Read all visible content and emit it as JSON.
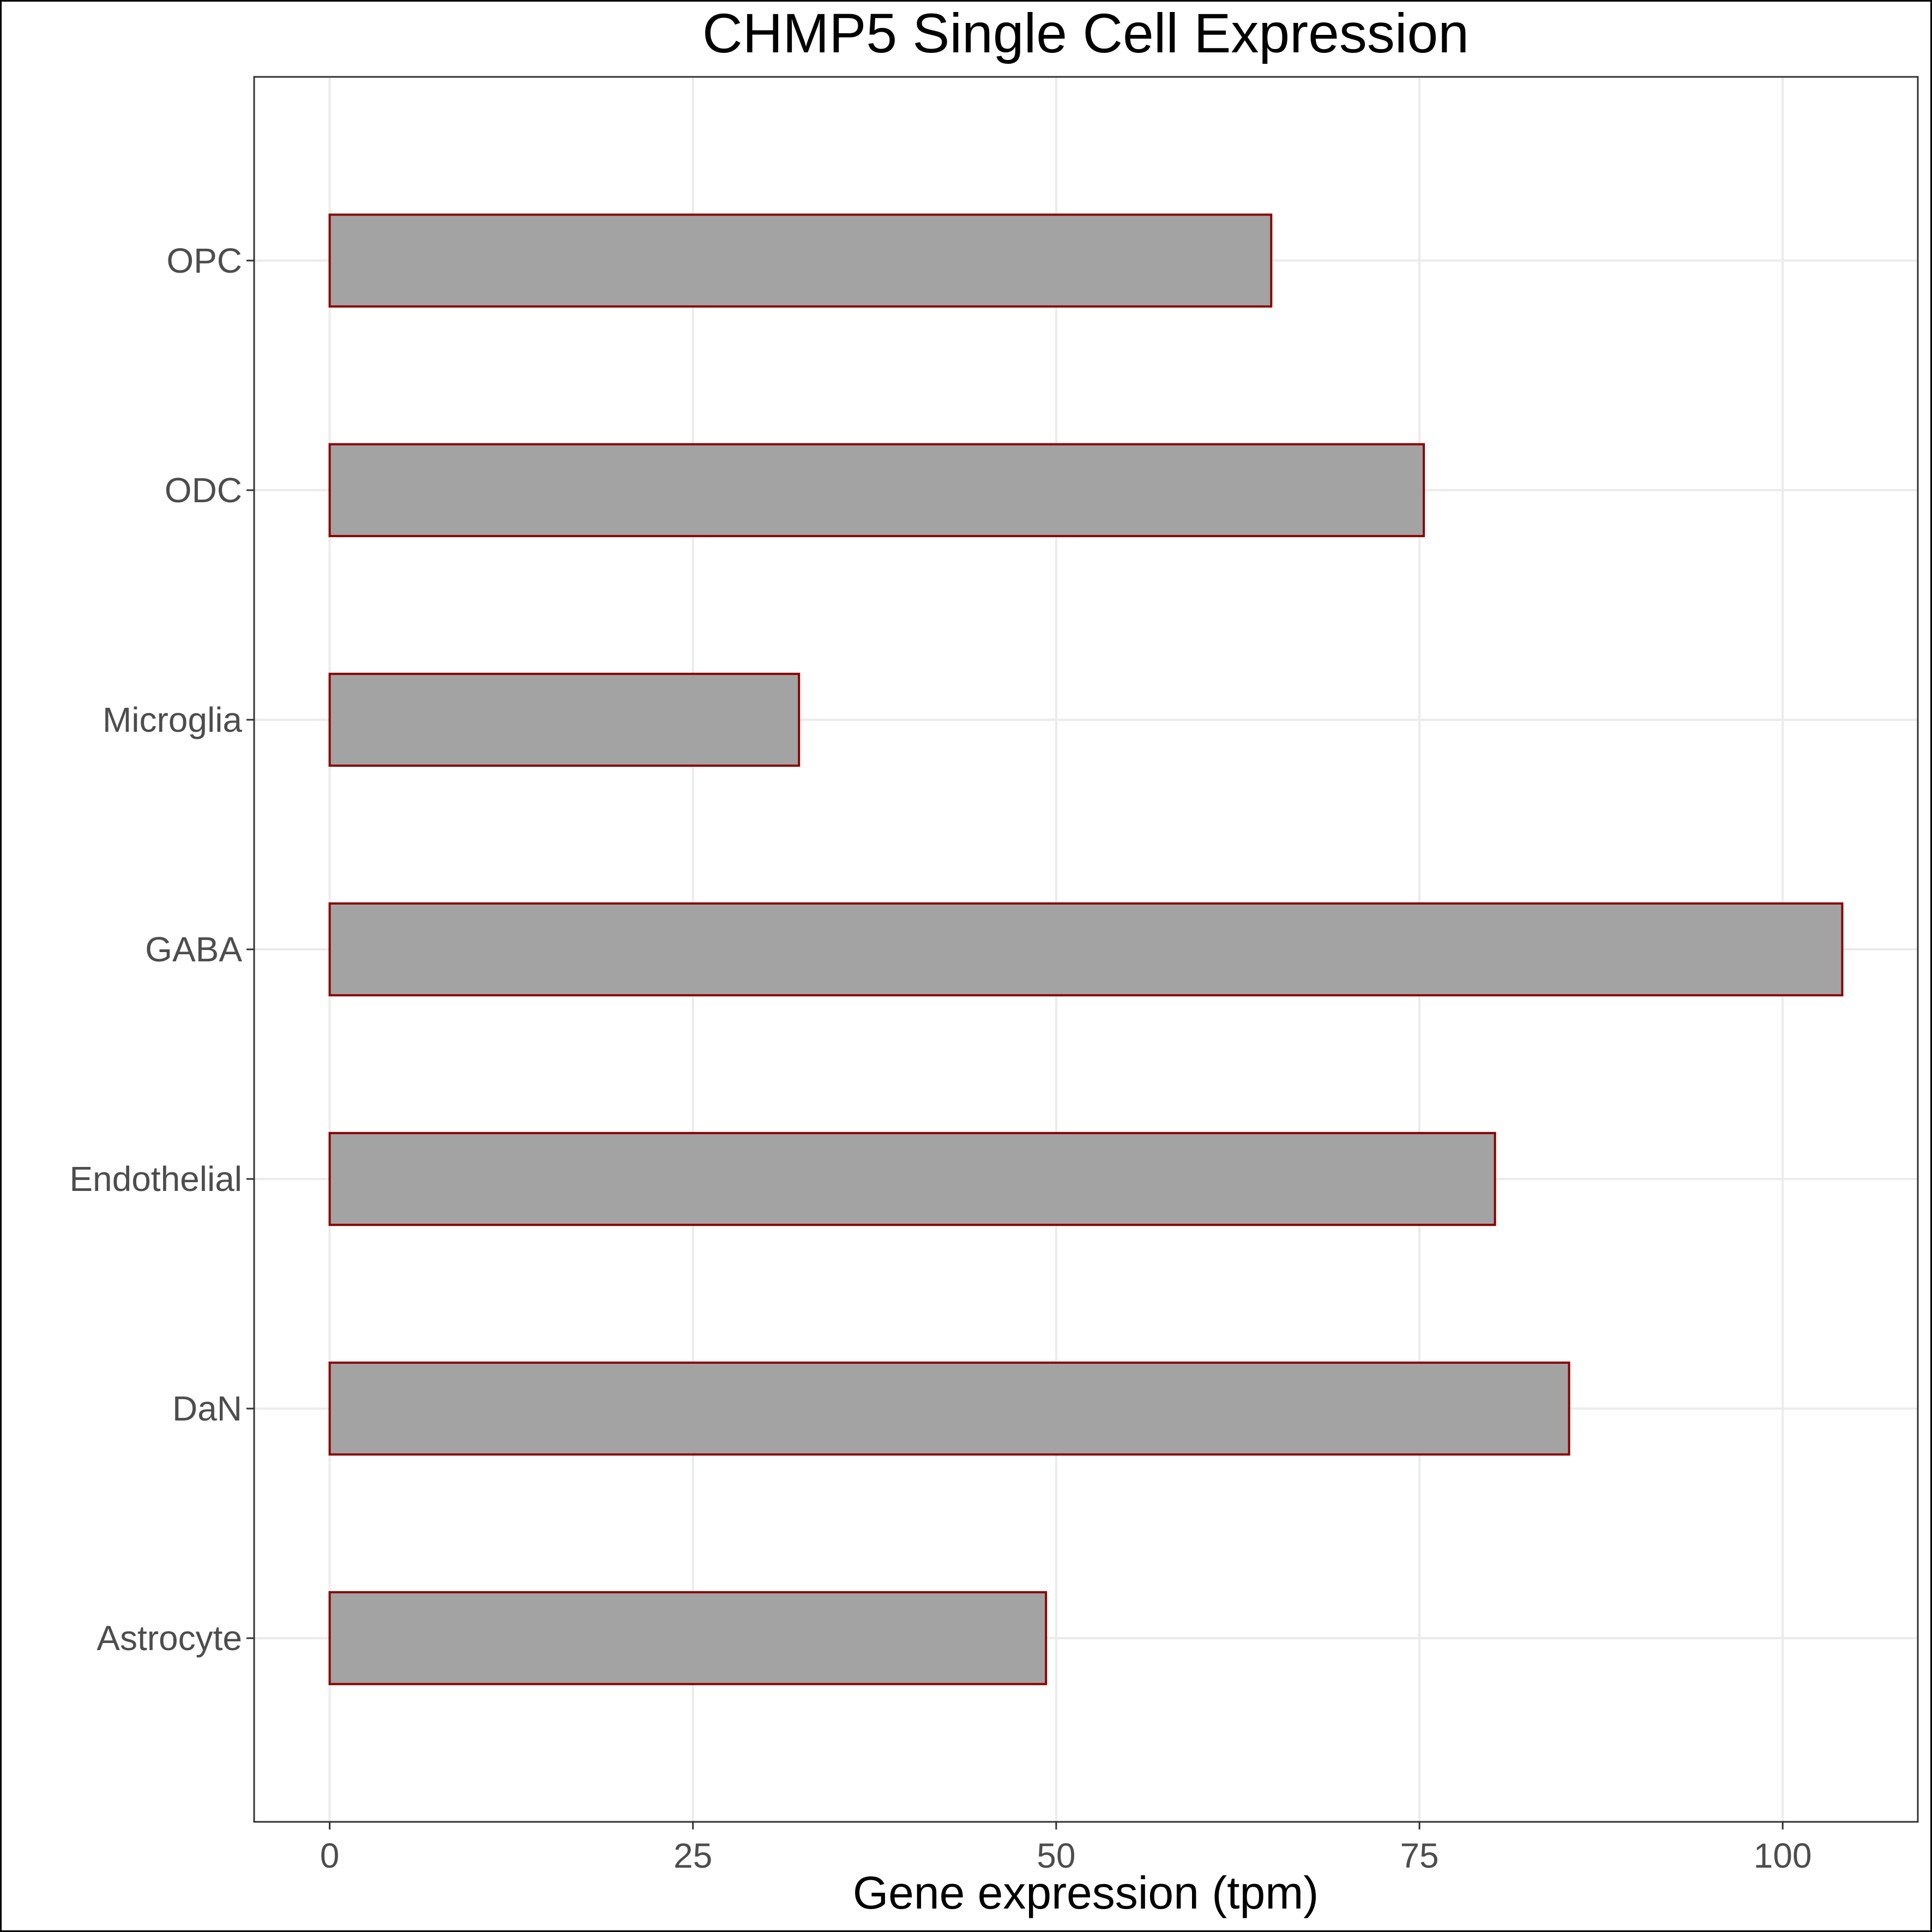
{
  "chart_data": {
    "type": "bar",
    "orientation": "horizontal",
    "title": "CHMP5 Single Cell Expression",
    "xlabel": "Gene expression (tpm)",
    "ylabel": "",
    "categories": [
      "Astrocyte",
      "DaN",
      "Endothelial",
      "GABA",
      "Microglia",
      "ODC",
      "OPC"
    ],
    "values": [
      49.3,
      85.3,
      80.2,
      104.1,
      32.3,
      75.3,
      64.8
    ],
    "xlim": [
      -5.2,
      109.3
    ],
    "xticks": [
      0,
      25,
      50,
      75,
      100
    ],
    "xtick_labels": [
      "0",
      "25",
      "50",
      "75",
      "100"
    ],
    "grid": true,
    "legend": "none",
    "bar_fill": "#a3a3a3",
    "bar_edge": "#8b0000"
  }
}
